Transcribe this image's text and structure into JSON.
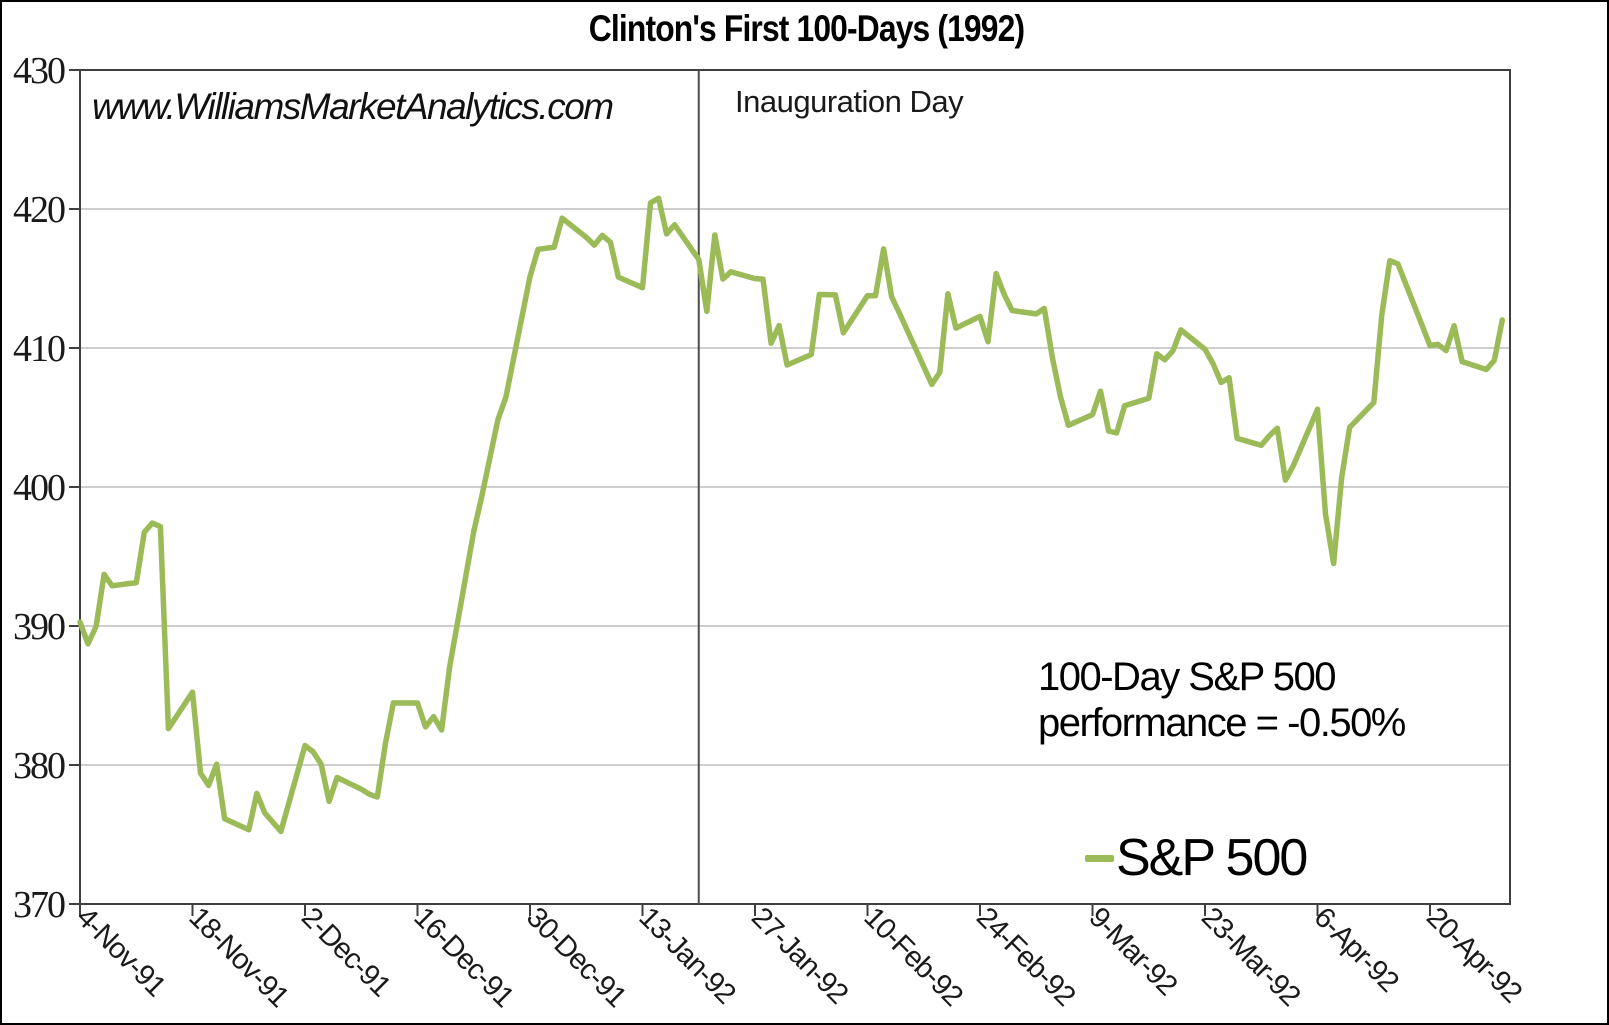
{
  "chart": {
    "title": "Clinton's First 100-Days (1992)",
    "watermark": "www.WilliamsMarketAnalytics.com",
    "vline_label": "Inauguration Day",
    "annotation_line1": "100-Day S&P 500",
    "annotation_line2": "performance = -0.50%",
    "legend_label": "S&P 500"
  },
  "chart_data": {
    "type": "line",
    "title": "Clinton's First 100-Days (1992)",
    "xlabel": "",
    "ylabel": "",
    "ylim": [
      370,
      430
    ],
    "yticks": [
      430,
      420,
      410,
      400,
      390,
      380,
      370
    ],
    "xtick_labels": [
      "4-Nov-91",
      "18-Nov-91",
      "2-Dec-91",
      "16-Dec-91",
      "30-Dec-91",
      "13-Jan-92",
      "27-Jan-92",
      "10-Feb-92",
      "24-Feb-92",
      "9-Mar-92",
      "23-Mar-92",
      "6-Apr-92",
      "20-Apr-92"
    ],
    "xtick_interval_days": 14,
    "grid": "horizontal gridlines only",
    "legend_position": "inside lower right",
    "line_color": "#9bbb59",
    "vline": {
      "label": "Inauguration Day",
      "date": "20-Jan-92",
      "day": 77
    },
    "annotation": "100-Day S&P 500 performance = -0.50%",
    "watermark": "www.WilliamsMarketAnalytics.com",
    "series": [
      {
        "name": "S&P 500",
        "points_format": [
          "date",
          "day_offset_from_4-Nov-91",
          "close"
        ],
        "points": [
          [
            "4-Nov-91",
            0,
            390.28
          ],
          [
            "5-Nov-91",
            1,
            388.71
          ],
          [
            "6-Nov-91",
            2,
            389.97
          ],
          [
            "7-Nov-91",
            3,
            393.72
          ],
          [
            "8-Nov-91",
            4,
            392.89
          ],
          [
            "11-Nov-91",
            7,
            393.12
          ],
          [
            "12-Nov-91",
            8,
            396.74
          ],
          [
            "13-Nov-91",
            9,
            397.41
          ],
          [
            "14-Nov-91",
            10,
            397.15
          ],
          [
            "15-Nov-91",
            11,
            382.62
          ],
          [
            "18-Nov-91",
            14,
            385.24
          ],
          [
            "19-Nov-91",
            15,
            379.42
          ],
          [
            "20-Nov-91",
            16,
            378.53
          ],
          [
            "21-Nov-91",
            17,
            380.06
          ],
          [
            "22-Nov-91",
            18,
            376.14
          ],
          [
            "25-Nov-91",
            21,
            375.34
          ],
          [
            "26-Nov-91",
            22,
            377.96
          ],
          [
            "27-Nov-91",
            23,
            376.55
          ],
          [
            "29-Nov-91",
            25,
            375.22
          ],
          [
            "2-Dec-91",
            28,
            381.4
          ],
          [
            "3-Dec-91",
            29,
            380.96
          ],
          [
            "4-Dec-91",
            30,
            380.07
          ],
          [
            "5-Dec-91",
            31,
            377.39
          ],
          [
            "6-Dec-91",
            32,
            379.1
          ],
          [
            "9-Dec-91",
            35,
            378.26
          ],
          [
            "10-Dec-91",
            36,
            377.9
          ],
          [
            "11-Dec-91",
            37,
            377.7
          ],
          [
            "12-Dec-91",
            38,
            381.55
          ],
          [
            "13-Dec-91",
            39,
            384.47
          ],
          [
            "16-Dec-91",
            42,
            384.46
          ],
          [
            "17-Dec-91",
            43,
            382.74
          ],
          [
            "18-Dec-91",
            44,
            383.48
          ],
          [
            "19-Dec-91",
            45,
            382.52
          ],
          [
            "20-Dec-91",
            46,
            387.04
          ],
          [
            "23-Dec-91",
            49,
            396.82
          ],
          [
            "24-Dec-91",
            50,
            399.33
          ],
          [
            "26-Dec-91",
            52,
            404.84
          ],
          [
            "27-Dec-91",
            53,
            406.46
          ],
          [
            "30-Dec-91",
            56,
            415.14
          ],
          [
            "31-Dec-91",
            57,
            417.09
          ],
          [
            "2-Jan-92",
            59,
            417.26
          ],
          [
            "3-Jan-92",
            60,
            419.34
          ],
          [
            "6-Jan-92",
            63,
            417.96
          ],
          [
            "7-Jan-92",
            64,
            417.4
          ],
          [
            "8-Jan-92",
            65,
            418.1
          ],
          [
            "9-Jan-92",
            66,
            417.61
          ],
          [
            "10-Jan-92",
            67,
            415.1
          ],
          [
            "13-Jan-92",
            70,
            414.34
          ],
          [
            "14-Jan-92",
            71,
            420.44
          ],
          [
            "15-Jan-92",
            72,
            420.77
          ],
          [
            "16-Jan-92",
            73,
            418.21
          ],
          [
            "17-Jan-92",
            74,
            418.86
          ],
          [
            "20-Jan-92",
            77,
            416.36
          ],
          [
            "21-Jan-92",
            78,
            412.64
          ],
          [
            "22-Jan-92",
            79,
            418.13
          ],
          [
            "23-Jan-92",
            80,
            414.96
          ],
          [
            "24-Jan-92",
            81,
            415.48
          ],
          [
            "27-Jan-92",
            84,
            414.99
          ],
          [
            "28-Jan-92",
            85,
            414.96
          ],
          [
            "29-Jan-92",
            86,
            410.34
          ],
          [
            "30-Jan-92",
            87,
            411.62
          ],
          [
            "31-Jan-92",
            88,
            408.78
          ],
          [
            "3-Feb-92",
            91,
            409.53
          ],
          [
            "4-Feb-92",
            92,
            413.85
          ],
          [
            "5-Feb-92",
            93,
            413.84
          ],
          [
            "6-Feb-92",
            94,
            413.82
          ],
          [
            "7-Feb-92",
            95,
            411.09
          ],
          [
            "10-Feb-92",
            98,
            413.77
          ],
          [
            "11-Feb-92",
            99,
            413.76
          ],
          [
            "12-Feb-92",
            100,
            417.13
          ],
          [
            "13-Feb-92",
            101,
            413.69
          ],
          [
            "14-Feb-92",
            102,
            412.48
          ],
          [
            "18-Feb-92",
            106,
            407.38
          ],
          [
            "19-Feb-92",
            107,
            408.26
          ],
          [
            "20-Feb-92",
            108,
            413.9
          ],
          [
            "21-Feb-92",
            109,
            411.43
          ],
          [
            "24-Feb-92",
            112,
            412.27
          ],
          [
            "25-Feb-92",
            113,
            410.45
          ],
          [
            "26-Feb-92",
            114,
            415.35
          ],
          [
            "27-Feb-92",
            115,
            413.86
          ],
          [
            "28-Feb-92",
            116,
            412.7
          ],
          [
            "2-Mar-92",
            119,
            412.45
          ],
          [
            "3-Mar-92",
            120,
            412.85
          ],
          [
            "4-Mar-92",
            121,
            409.33
          ],
          [
            "5-Mar-92",
            122,
            406.51
          ],
          [
            "6-Mar-92",
            123,
            404.44
          ],
          [
            "9-Mar-92",
            126,
            405.21
          ],
          [
            "10-Mar-92",
            127,
            406.89
          ],
          [
            "11-Mar-92",
            128,
            404.03
          ],
          [
            "12-Mar-92",
            129,
            403.89
          ],
          [
            "13-Mar-92",
            130,
            405.84
          ],
          [
            "16-Mar-92",
            133,
            406.39
          ],
          [
            "17-Mar-92",
            134,
            409.58
          ],
          [
            "18-Mar-92",
            135,
            409.15
          ],
          [
            "19-Mar-92",
            136,
            409.8
          ],
          [
            "20-Mar-92",
            137,
            411.3
          ],
          [
            "23-Mar-92",
            140,
            409.91
          ],
          [
            "24-Mar-92",
            141,
            408.88
          ],
          [
            "25-Mar-92",
            142,
            407.52
          ],
          [
            "26-Mar-92",
            143,
            407.86
          ],
          [
            "27-Mar-92",
            144,
            403.5
          ],
          [
            "30-Mar-92",
            147,
            403.0
          ],
          [
            "31-Mar-92",
            148,
            403.69
          ],
          [
            "1-Apr-92",
            149,
            404.23
          ],
          [
            "2-Apr-92",
            150,
            400.5
          ],
          [
            "3-Apr-92",
            151,
            401.55
          ],
          [
            "6-Apr-92",
            154,
            405.59
          ],
          [
            "7-Apr-92",
            155,
            398.06
          ],
          [
            "8-Apr-92",
            156,
            394.5
          ],
          [
            "9-Apr-92",
            157,
            400.64
          ],
          [
            "10-Apr-92",
            158,
            404.29
          ],
          [
            "13-Apr-92",
            161,
            406.08
          ],
          [
            "14-Apr-92",
            162,
            412.39
          ],
          [
            "15-Apr-92",
            163,
            416.28
          ],
          [
            "16-Apr-92",
            164,
            416.05
          ],
          [
            "20-Apr-92",
            168,
            410.18
          ],
          [
            "21-Apr-92",
            169,
            410.26
          ],
          [
            "22-Apr-92",
            170,
            409.81
          ],
          [
            "23-Apr-92",
            171,
            411.6
          ],
          [
            "24-Apr-92",
            172,
            409.02
          ],
          [
            "27-Apr-92",
            175,
            408.45
          ],
          [
            "28-Apr-92",
            176,
            409.11
          ],
          [
            "29-Apr-92",
            177,
            412.02
          ]
        ]
      }
    ]
  },
  "style": {
    "line_color": "#9bbb59",
    "grid_color": "#bdbdbd",
    "axis_color": "#3f3f3f",
    "text_color": "#1a1a1a"
  }
}
